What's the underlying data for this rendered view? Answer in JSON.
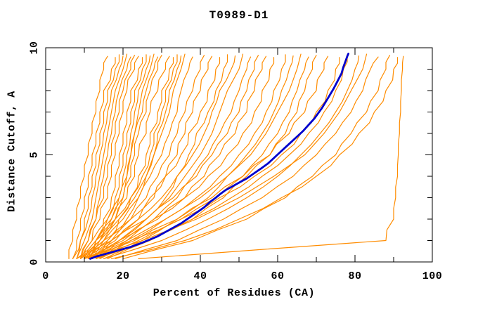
{
  "background": "#ffffff",
  "chart_data": {
    "type": "line",
    "title": "T0989-D1",
    "xlabel": "Percent of Residues (CA)",
    "ylabel": "Distance Cutoff, A",
    "xlim": [
      0,
      100
    ],
    "ylim": [
      0,
      10
    ],
    "grid": false,
    "legend": "none",
    "x_major_ticks": [
      0,
      20,
      40,
      60,
      80,
      100
    ],
    "x_tick_labels": [
      "0",
      "20",
      "40",
      "60",
      "80",
      "100"
    ],
    "x_minor_tick_step": 10,
    "y_major_ticks": [
      0,
      5,
      10
    ],
    "y_tick_labels": [
      "0",
      "5",
      "10"
    ],
    "y_minor_tick_step": 1,
    "model_color": "#ff8c00",
    "highlight_color": "#0000cd",
    "axis_color": "#000000",
    "model_cutoffs": [
      0.15,
      1,
      2,
      3,
      4,
      5,
      6,
      7,
      8,
      9
    ],
    "model_curves": [
      {
        "pct": [
          6,
          7,
          8,
          9,
          10,
          11,
          12,
          13,
          14,
          15,
          16
        ],
        "top": 9.6
      },
      {
        "pct": [
          7,
          8,
          9,
          10,
          11,
          12,
          13,
          14,
          15,
          17,
          18
        ],
        "top": 9.55
      },
      {
        "pct": [
          7,
          9,
          10,
          11,
          12,
          13,
          14,
          15,
          16,
          18,
          19
        ],
        "top": 9.68
      },
      {
        "pct": [
          8,
          9,
          11,
          12,
          13,
          14,
          15,
          16,
          17,
          19,
          20
        ],
        "top": 9.62
      },
      {
        "pct": [
          8,
          10,
          12,
          13,
          14,
          15,
          16,
          17,
          18,
          20,
          21
        ],
        "top": 9.7
      },
      {
        "pct": [
          9,
          11,
          13,
          14,
          15,
          16,
          17,
          18,
          19,
          21,
          22
        ],
        "top": 9.57
      },
      {
        "pct": [
          9,
          11,
          13,
          15,
          16,
          17,
          18,
          19,
          20,
          22,
          23
        ],
        "top": 9.65
      },
      {
        "pct": [
          10,
          12,
          14,
          16,
          17,
          18,
          19,
          20,
          21,
          23,
          24
        ],
        "top": 9.6
      },
      {
        "pct": [
          10,
          13,
          15,
          17,
          18,
          19,
          20,
          21,
          22,
          24,
          25
        ],
        "top": 9.55
      },
      {
        "pct": [
          11,
          13,
          16,
          18,
          19,
          20,
          21,
          22,
          23,
          25,
          26
        ],
        "top": 9.68
      },
      {
        "pct": [
          11,
          14,
          17,
          19,
          20,
          21,
          22,
          23,
          24,
          26,
          27
        ],
        "top": 9.62
      },
      {
        "pct": [
          12,
          15,
          18,
          20,
          21,
          22,
          23,
          24,
          25,
          27,
          28
        ],
        "top": 9.7
      },
      {
        "pct": [
          9,
          12,
          16,
          19,
          21,
          22,
          23,
          25,
          26,
          28,
          29
        ],
        "top": 9.57
      },
      {
        "pct": [
          10,
          13,
          17,
          20,
          22,
          23,
          24,
          26,
          27,
          29,
          30
        ],
        "top": 9.65
      },
      {
        "pct": [
          11,
          14,
          18,
          21,
          23,
          24,
          26,
          27,
          29,
          31,
          32
        ],
        "top": 9.6
      },
      {
        "pct": [
          12,
          16,
          19,
          22,
          24,
          26,
          27,
          29,
          30,
          32,
          33
        ],
        "top": 9.55
      },
      {
        "pct": [
          8,
          13,
          18,
          22,
          25,
          27,
          28,
          30,
          31,
          33,
          34
        ],
        "top": 9.68
      },
      {
        "pct": [
          13,
          17,
          21,
          24,
          26,
          28,
          29,
          31,
          32,
          34,
          35
        ],
        "top": 9.62
      },
      {
        "pct": [
          9,
          14,
          19,
          23,
          26,
          28,
          30,
          32,
          33,
          35,
          36
        ],
        "top": 9.7
      },
      {
        "pct": [
          10,
          15,
          20,
          24,
          27,
          30,
          32,
          34,
          35,
          37,
          38
        ],
        "top": 9.57
      },
      {
        "pct": [
          11,
          16,
          22,
          26,
          29,
          32,
          34,
          36,
          38,
          40,
          41
        ],
        "top": 9.65
      },
      {
        "pct": [
          12,
          18,
          24,
          28,
          31,
          34,
          36,
          38,
          40,
          42,
          43
        ],
        "top": 9.6
      },
      {
        "pct": [
          8,
          15,
          22,
          27,
          31,
          35,
          37,
          40,
          42,
          44,
          45
        ],
        "top": 9.55
      },
      {
        "pct": [
          13,
          19,
          26,
          31,
          34,
          37,
          39,
          42,
          44,
          46,
          47
        ],
        "top": 9.68
      },
      {
        "pct": [
          10,
          17,
          24,
          30,
          34,
          38,
          41,
          43,
          45,
          48,
          49
        ],
        "top": 9.62
      },
      {
        "pct": [
          11,
          19,
          26,
          32,
          36,
          40,
          43,
          45,
          47,
          50,
          51
        ],
        "top": 9.7
      },
      {
        "pct": [
          14,
          21,
          28,
          34,
          38,
          42,
          45,
          48,
          50,
          52,
          53
        ],
        "top": 9.57
      },
      {
        "pct": [
          9,
          17,
          26,
          33,
          39,
          43,
          47,
          50,
          52,
          54,
          55
        ],
        "top": 9.65
      },
      {
        "pct": [
          12,
          20,
          29,
          36,
          41,
          45,
          49,
          52,
          54,
          56,
          57
        ],
        "top": 9.6
      },
      {
        "pct": [
          10,
          19,
          28,
          36,
          42,
          47,
          51,
          54,
          56,
          58,
          59
        ],
        "top": 9.55
      },
      {
        "pct": [
          13,
          22,
          31,
          39,
          45,
          50,
          54,
          57,
          59,
          61,
          62
        ],
        "top": 9.68
      },
      {
        "pct": [
          15,
          25,
          34,
          42,
          47,
          52,
          56,
          59,
          61,
          63,
          64
        ],
        "top": 9.62
      },
      {
        "pct": [
          11,
          21,
          31,
          40,
          47,
          53,
          57,
          60,
          63,
          65,
          66
        ],
        "top": 9.7
      },
      {
        "pct": [
          14,
          24,
          35,
          44,
          51,
          56,
          60,
          63,
          65,
          67,
          68
        ],
        "top": 9.57
      },
      {
        "pct": [
          16,
          27,
          38,
          46,
          52,
          58,
          62,
          65,
          67,
          69,
          70
        ],
        "top": 9.65
      },
      {
        "pct": [
          12,
          23,
          34,
          43,
          51,
          58,
          63,
          67,
          70,
          72,
          73
        ],
        "top": 9.6
      },
      {
        "pct": [
          10,
          22,
          35,
          45,
          54,
          61,
          66,
          70,
          73,
          75,
          76
        ],
        "top": 9.55
      },
      {
        "pct": [
          13,
          26,
          38,
          48,
          56,
          63,
          68,
          72,
          75,
          77,
          78
        ],
        "top": 9.68
      },
      {
        "pct": [
          15,
          30,
          42,
          52,
          60,
          66,
          71,
          75,
          78,
          80,
          81
        ],
        "top": 9.62
      },
      {
        "pct": [
          11,
          25,
          39,
          50,
          59,
          67,
          72,
          76,
          79,
          82,
          83
        ],
        "top": 9.7
      },
      {
        "pct": [
          18,
          34,
          46,
          56,
          64,
          70,
          75,
          79,
          82,
          84,
          86
        ],
        "top": 9.57
      },
      {
        "pct": [
          20,
          38,
          52,
          62,
          69,
          75,
          79,
          83,
          86,
          88,
          89
        ],
        "top": 9.65
      },
      {
        "pct": [
          24,
          88,
          90,
          90.5,
          91,
          91.2,
          91.5,
          91.8,
          92,
          92.3,
          92.5
        ],
        "top": 9.6
      },
      {
        "pct": [
          17,
          36,
          50,
          61,
          70,
          76,
          81,
          85,
          88,
          90,
          91
        ],
        "top": 9.55
      }
    ],
    "highlight_curve": [
      [
        11.5,
        0.15
      ],
      [
        13,
        0.25
      ],
      [
        16,
        0.4
      ],
      [
        19,
        0.55
      ],
      [
        22,
        0.7
      ],
      [
        25,
        0.9
      ],
      [
        27,
        1.05
      ],
      [
        29,
        1.2
      ],
      [
        31,
        1.4
      ],
      [
        33,
        1.6
      ],
      [
        35,
        1.8
      ],
      [
        37,
        2.05
      ],
      [
        39,
        2.3
      ],
      [
        41,
        2.55
      ],
      [
        42.5,
        2.8
      ],
      [
        44,
        3.0
      ],
      [
        45,
        3.15
      ],
      [
        46.5,
        3.35
      ],
      [
        48,
        3.5
      ],
      [
        50,
        3.7
      ],
      [
        52,
        3.9
      ],
      [
        54,
        4.15
      ],
      [
        56,
        4.4
      ],
      [
        57.5,
        4.6
      ],
      [
        59,
        4.85
      ],
      [
        60.5,
        5.1
      ],
      [
        62,
        5.35
      ],
      [
        63.5,
        5.6
      ],
      [
        65,
        5.85
      ],
      [
        66.5,
        6.1
      ],
      [
        68,
        6.4
      ],
      [
        69.5,
        6.7
      ],
      [
        70.5,
        6.95
      ],
      [
        71.5,
        7.2
      ],
      [
        72.5,
        7.5
      ],
      [
        73.5,
        7.8
      ],
      [
        74.5,
        8.1
      ],
      [
        75.5,
        8.45
      ],
      [
        76.5,
        8.8
      ],
      [
        77,
        9.1
      ],
      [
        77.5,
        9.35
      ],
      [
        78,
        9.6
      ],
      [
        78.3,
        9.72
      ]
    ]
  }
}
